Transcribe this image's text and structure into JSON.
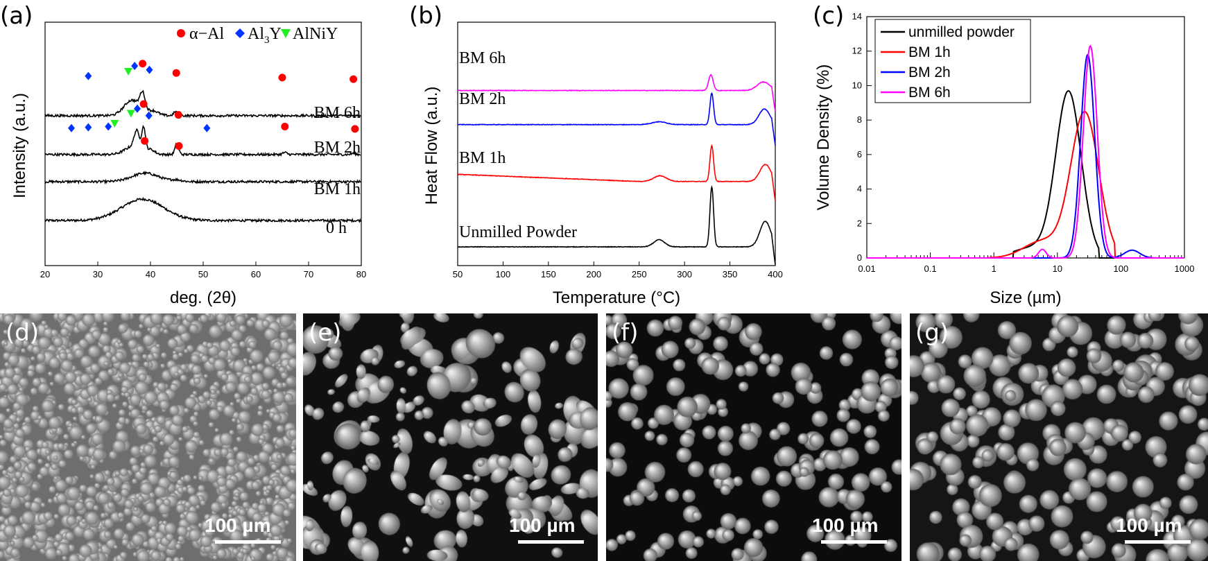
{
  "panel_labels": [
    "(a)",
    "(b)",
    "(c)"
  ],
  "sem_labels": [
    "(d)",
    "(e)",
    "(f)",
    "(g)"
  ],
  "scale_bar_text": "100 µm",
  "colors": {
    "black": "#000000",
    "red": "#ff0000",
    "blue": "#0000ff",
    "magenta": "#ff00ff",
    "green": "#00dd00",
    "alpha_marker": "#ff0000",
    "al3y_marker": "#0033ff",
    "alniy_marker": "#22ee22"
  },
  "chart_data": [
    {
      "id": "a",
      "type": "line",
      "xlabel": "deg. (2θ)",
      "ylabel": "Intensity (a.u.)",
      "xlim": [
        20,
        80
      ],
      "xticks": [
        20,
        30,
        40,
        50,
        60,
        70,
        80
      ],
      "legend": {
        "placement": "top-right",
        "entries": [
          "α−Al",
          "Al3Y",
          "AlNiY"
        ]
      },
      "series": [
        {
          "name": "0 h",
          "baseline": 0.0,
          "peaks": [
            [
              38.5,
              0.55,
              4.0
            ]
          ]
        },
        {
          "name": "BM 1h",
          "baseline": 1.0,
          "peaks": [
            [
              39.0,
              0.22,
              2.5
            ],
            [
              45.0,
              0.04,
              1.0
            ]
          ]
        },
        {
          "name": "BM 2h",
          "baseline": 1.7,
          "peaks": [
            [
              37.4,
              0.45,
              0.5
            ],
            [
              38.7,
              0.6,
              0.35
            ],
            [
              36.6,
              0.2,
              1.5
            ],
            [
              40.0,
              0.12,
              0.8
            ],
            [
              45.0,
              0.28,
              0.35
            ],
            [
              65.5,
              0.05,
              0.4
            ],
            [
              78.5,
              0.03,
              0.4
            ]
          ]
        },
        {
          "name": "BM 6h",
          "baseline": 2.7,
          "peaks": [
            [
              36.5,
              0.4,
              1.5
            ],
            [
              38.5,
              0.45,
              0.5
            ],
            [
              40.5,
              0.12,
              1.0
            ],
            [
              44.8,
              0.1,
              0.4
            ]
          ]
        }
      ],
      "markers": [
        {
          "type": "al3y",
          "points": [
            [
              28.2,
              3.72
            ],
            [
              37.0,
              3.98
            ],
            [
              39.8,
              3.88
            ],
            [
              25.0,
              2.38
            ],
            [
              28.2,
              2.4
            ],
            [
              32.0,
              2.42
            ],
            [
              37.5,
              2.88
            ],
            [
              39.7,
              2.7
            ],
            [
              50.7,
              2.38
            ]
          ]
        },
        {
          "type": "alpha",
          "points": [
            [
              38.5,
              4.04
            ],
            [
              44.9,
              3.8
            ],
            [
              65.0,
              3.68
            ],
            [
              78.5,
              3.64
            ],
            [
              38.7,
              3.0
            ],
            [
              45.3,
              2.72
            ],
            [
              65.5,
              2.42
            ],
            [
              78.8,
              2.36
            ],
            [
              38.9,
              2.05
            ],
            [
              45.4,
              1.92
            ]
          ]
        },
        {
          "type": "alniy",
          "points": [
            [
              35.8,
              3.84
            ],
            [
              33.2,
              2.5
            ],
            [
              36.3,
              2.76
            ]
          ]
        }
      ]
    },
    {
      "id": "b",
      "type": "line",
      "xlabel": "Temperature (°C)",
      "ylabel": "Heat Flow (a.u.)",
      "xlim": [
        50,
        400
      ],
      "xticks": [
        50,
        100,
        150,
        200,
        250,
        300,
        350,
        400
      ],
      "series": [
        {
          "name": "Unmilled Powder",
          "color": "#000000",
          "baseline": 0.0,
          "pre": 0.0,
          "peaks": [
            [
              272,
              0.25,
              6
            ],
            [
              330,
              2.1,
              2.0
            ],
            [
              389,
              0.9,
              6
            ]
          ]
        },
        {
          "name": "BM 1h",
          "color": "#ff0000",
          "baseline": 2.3,
          "pre": 0.25,
          "peaks": [
            [
              273,
              0.2,
              7
            ],
            [
              330,
              1.25,
              2.0
            ],
            [
              389,
              0.6,
              6
            ]
          ]
        },
        {
          "name": "BM 2h",
          "color": "#0000ff",
          "baseline": 4.3,
          "pre": 0.0,
          "peaks": [
            [
              272,
              0.1,
              8
            ],
            [
              330,
              1.1,
              2.0
            ],
            [
              388,
              0.55,
              6
            ]
          ]
        },
        {
          "name": "BM 6h",
          "color": "#ff00ff",
          "baseline": 5.5,
          "pre": 0.0,
          "peaks": [
            [
              329,
              0.55,
              2.5
            ],
            [
              387,
              0.3,
              7
            ]
          ]
        }
      ]
    },
    {
      "id": "c",
      "type": "line",
      "xlabel": "Size (µm)",
      "ylabel": "Volume Density (%)",
      "xscale": "log",
      "xlim": [
        0.01,
        1000
      ],
      "ylim": [
        0,
        14
      ],
      "xticks": [
        "0.01",
        "0.1",
        "1",
        "10",
        "100",
        "1000"
      ],
      "yticks": [
        0,
        2,
        4,
        6,
        8,
        10,
        12,
        14
      ],
      "legend": {
        "placement": "top-left"
      },
      "series": [
        {
          "name": "unmilled powder",
          "color": "#000000",
          "peaks": [
            [
              15,
              9.6,
              0.2
            ],
            [
              4.0,
              0.6,
              0.3
            ]
          ],
          "range": [
            2,
            45
          ]
        },
        {
          "name": "BM 1h",
          "color": "#ff0000",
          "peaks": [
            [
              27,
              8.4,
              0.22
            ],
            [
              6.0,
              1.0,
              0.3
            ]
          ],
          "range": [
            0.8,
            80
          ]
        },
        {
          "name": "BM 2h",
          "color": "#0000ff",
          "peaks": [
            [
              30,
              11.8,
              0.11
            ],
            [
              150,
              0.45,
              0.12
            ]
          ],
          "range": [
            8,
            400
          ]
        },
        {
          "name": "BM 6h",
          "color": "#ff00ff",
          "peaks": [
            [
              33,
              12.3,
              0.11
            ],
            [
              5.8,
              0.5,
              0.06
            ]
          ],
          "range": [
            3.5,
            80
          ]
        }
      ]
    }
  ]
}
